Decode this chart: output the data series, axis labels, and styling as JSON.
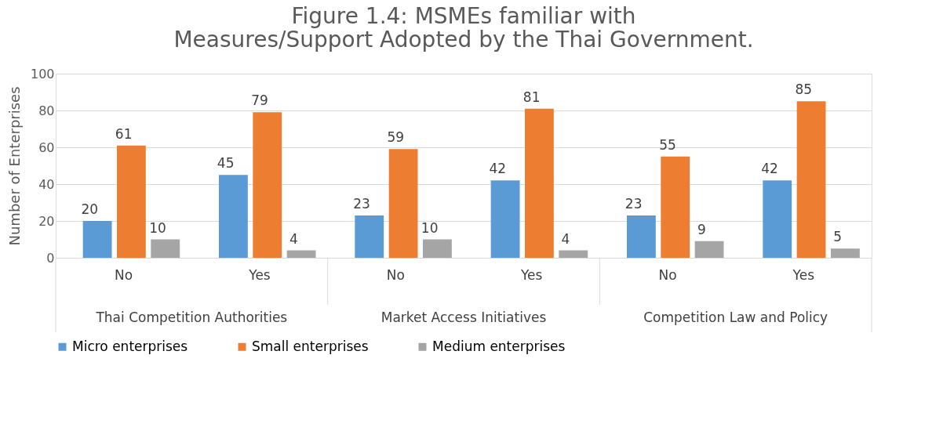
{
  "chart_data": {
    "type": "bar",
    "title": "Figure 1.4: MSMEs familiar with Measures/Support Adopted by the Thai Government.",
    "ylabel": "Number of Enterprises",
    "categories": [
      "No",
      "Yes",
      "No",
      "Yes",
      "No",
      "Yes"
    ],
    "annotations": [
      "Thai Competition Authorities",
      "Market Access Initiatives",
      "Competition Law and Policy"
    ],
    "series": [
      {
        "name": "Micro enterprises",
        "color": "#5b9bd5",
        "values": [
          20,
          45,
          23,
          42,
          23,
          42
        ]
      },
      {
        "name": "Small enterprises",
        "color": "#ed7d31",
        "values": [
          61,
          79,
          59,
          81,
          55,
          85
        ]
      },
      {
        "name": "Medium enterprises",
        "color": "#a5a5a5",
        "values": [
          10,
          4,
          10,
          4,
          9,
          5
        ]
      }
    ],
    "ylim": [
      0,
      100
    ],
    "yticks": [
      0,
      20,
      40,
      60,
      80,
      100
    ],
    "grid": "y",
    "legend": "bottom",
    "data_labels": true
  }
}
